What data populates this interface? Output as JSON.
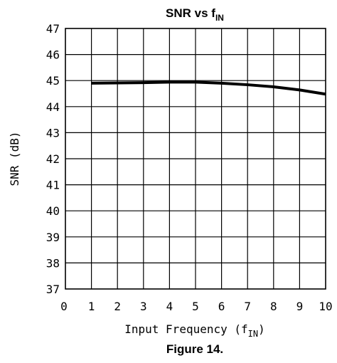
{
  "chart_data": {
    "type": "line",
    "title": {
      "main": "SNR vs f",
      "sub": "IN"
    },
    "xlabel": {
      "main": "Input Frequency (f",
      "sub": "IN",
      "close": ")"
    },
    "ylabel": "SNR (dB)",
    "xlim": [
      0,
      10
    ],
    "ylim": [
      37,
      47
    ],
    "xticks": [
      0,
      1,
      2,
      3,
      4,
      5,
      6,
      7,
      8,
      9,
      10
    ],
    "yticks": [
      37,
      38,
      39,
      40,
      41,
      42,
      43,
      44,
      45,
      46,
      47
    ],
    "grid": true,
    "series": [
      {
        "x": [
          1,
          2,
          3,
          4,
          5,
          6,
          7,
          8,
          9,
          10
        ],
        "y": [
          44.9,
          44.91,
          44.92,
          44.94,
          44.94,
          44.9,
          44.84,
          44.76,
          44.64,
          44.48
        ],
        "color": "#000000"
      }
    ]
  },
  "caption": "Figure 14."
}
